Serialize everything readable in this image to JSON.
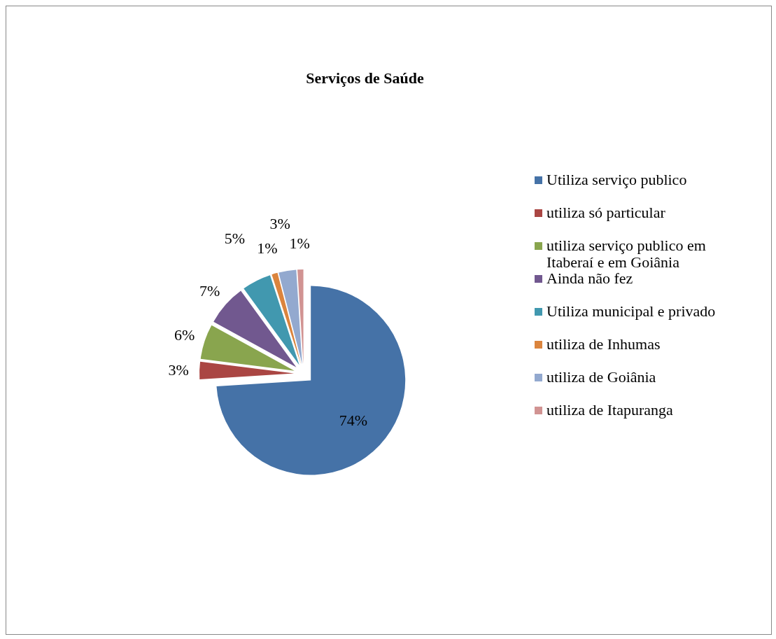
{
  "chart_data": {
    "type": "pie",
    "title": "Serviços de Saúde",
    "categories": [
      "Utiliza serviço publico",
      "utiliza só particular",
      "utiliza serviço publico em Itaberaí e em Goiânia",
      "Ainda não fez",
      "Utiliza municipal e privado",
      "utiliza de Inhumas",
      "utiliza de Goiânia",
      "utiliza de Itapuranga"
    ],
    "values": [
      74,
      3,
      6,
      7,
      5,
      1,
      3,
      1
    ],
    "value_labels": [
      "74%",
      "3%",
      "6%",
      "7%",
      "5%",
      "1%",
      "3%",
      "1%"
    ],
    "colors": [
      "#4572a7",
      "#aa4643",
      "#89a54e",
      "#71588f",
      "#4198af",
      "#db843d",
      "#93a9cf",
      "#d19392"
    ],
    "legend": "right"
  }
}
